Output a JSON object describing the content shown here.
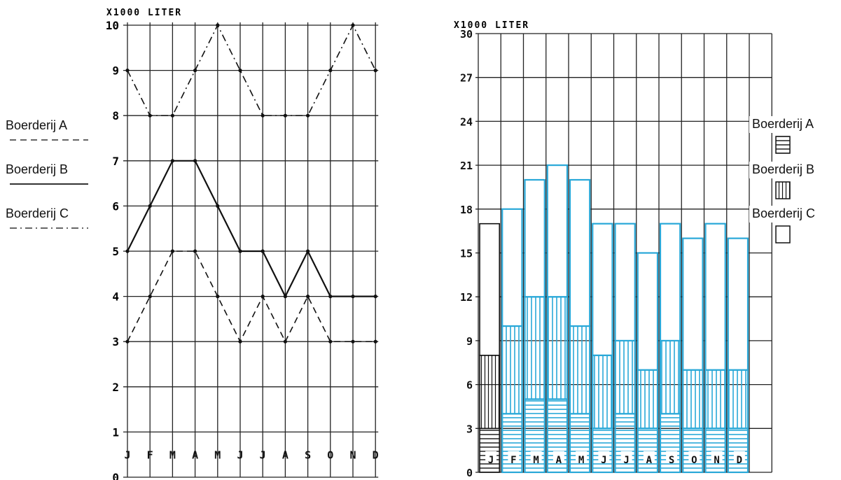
{
  "chart_data": [
    {
      "type": "line",
      "unit_label": "X1000 LITER",
      "categories": [
        "J",
        "F",
        "M",
        "A",
        "M",
        "J",
        "J",
        "A",
        "S",
        "O",
        "N",
        "D"
      ],
      "ylim": [
        0,
        10
      ],
      "yticks": [
        "0",
        "1",
        "2",
        "3",
        "4",
        "5",
        "6",
        "7",
        "8",
        "9",
        "10"
      ],
      "grid": true,
      "series": [
        {
          "name": "Boerderij A",
          "style": "dashed",
          "values": [
            3,
            4,
            5,
            5,
            4,
            3,
            4,
            3,
            4,
            3,
            3,
            3
          ]
        },
        {
          "name": "Boerderij B",
          "style": "solid",
          "values": [
            5,
            6,
            7,
            7,
            6,
            5,
            5,
            4,
            5,
            4,
            4,
            4
          ]
        },
        {
          "name": "Boerderij C",
          "style": "dash-dot",
          "values": [
            9,
            8,
            8,
            9,
            10,
            9,
            8,
            8,
            8,
            9,
            10,
            9
          ]
        }
      ],
      "legend": [
        {
          "name": "Boerderij A",
          "style": "dashed"
        },
        {
          "name": "Boerderij B",
          "style": "solid"
        },
        {
          "name": "Boerderij C",
          "style": "dash-dot"
        }
      ]
    },
    {
      "type": "bar",
      "stacked": true,
      "unit_label": "X1000 LITER",
      "categories": [
        "J",
        "F",
        "M",
        "A",
        "M",
        "J",
        "J",
        "A",
        "S",
        "O",
        "N",
        "D"
      ],
      "ylim": [
        0,
        30
      ],
      "yticks": [
        "0",
        "3",
        "6",
        "9",
        "12",
        "15",
        "18",
        "21",
        "24",
        "27",
        "30"
      ],
      "grid": true,
      "colors": {
        "highlight": "#29a8d8",
        "original": "#111111"
      },
      "series": [
        {
          "name": "Boerderij A",
          "pattern": "horizontal-lines",
          "values": [
            3,
            4,
            5,
            5,
            4,
            3,
            4,
            3,
            4,
            3,
            3,
            3
          ]
        },
        {
          "name": "Boerderij B",
          "pattern": "vertical-lines",
          "values": [
            5,
            6,
            7,
            7,
            6,
            5,
            5,
            4,
            5,
            4,
            4,
            4
          ]
        },
        {
          "name": "Boerderij C",
          "pattern": "empty",
          "values": [
            9,
            8,
            8,
            9,
            10,
            9,
            8,
            8,
            8,
            9,
            10,
            9
          ]
        }
      ],
      "legend": [
        {
          "name": "Boerderij A",
          "pattern": "horizontal-lines"
        },
        {
          "name": "Boerderij B",
          "pattern": "vertical-lines"
        },
        {
          "name": "Boerderij C",
          "pattern": "empty"
        }
      ]
    }
  ]
}
